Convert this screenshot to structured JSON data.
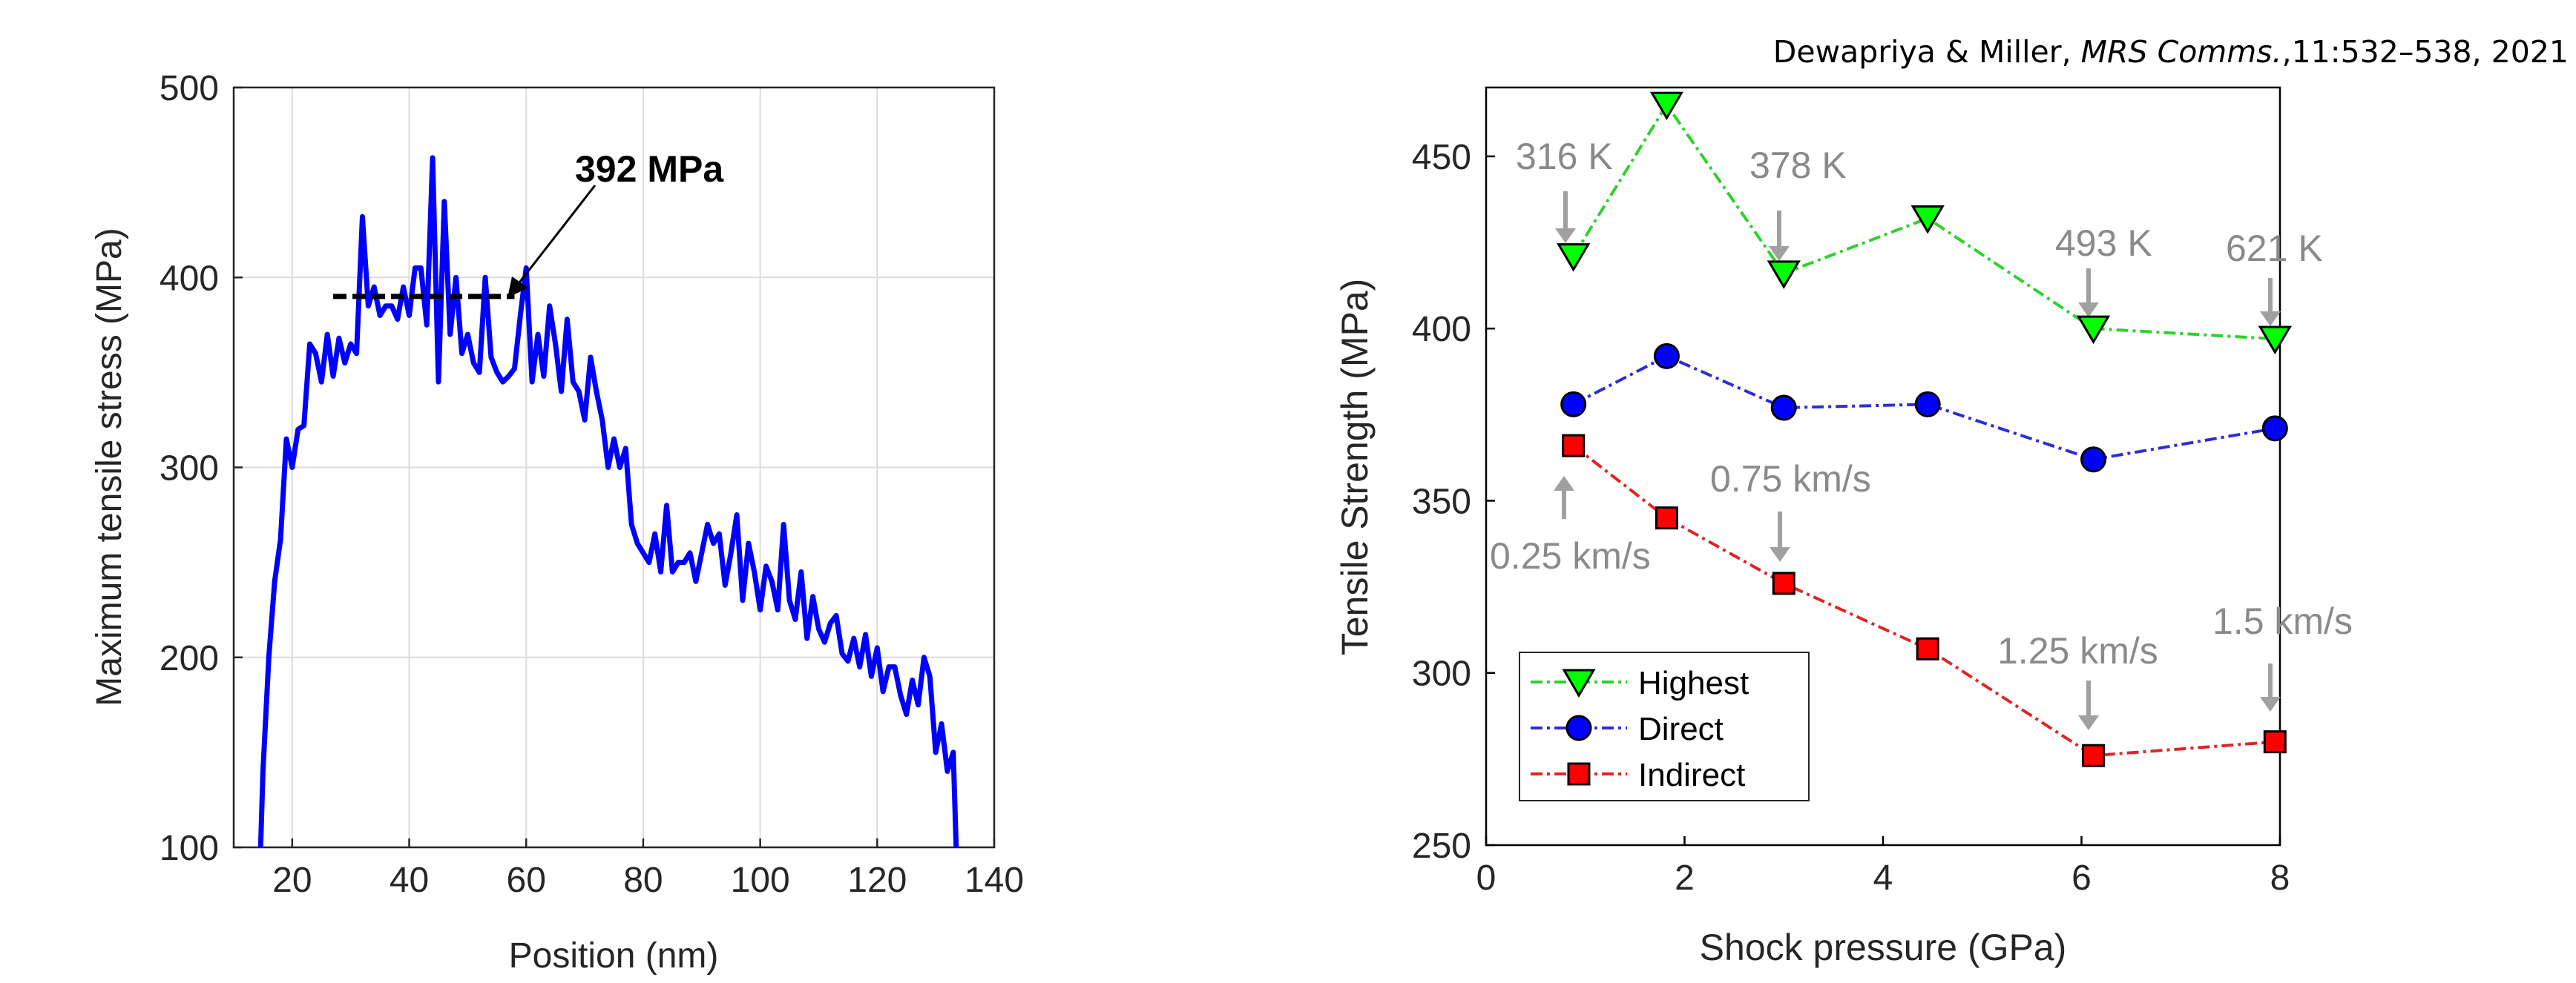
{
  "citation": {
    "authors": "Dewapriya & Miller,",
    "journal": "MRS Comms.",
    "details": ",11:532–538, 2021"
  },
  "chart_data": [
    {
      "type": "line",
      "xlabel": "Position (nm)",
      "ylabel": "Maximum tensile stress (MPa)",
      "xlim": [
        10,
        140
      ],
      "ylim": [
        100,
        500
      ],
      "xticks": [
        20,
        40,
        60,
        80,
        100,
        120,
        140
      ],
      "yticks": [
        100,
        200,
        300,
        400,
        500
      ],
      "grid": true,
      "series": [
        {
          "color": "#0000ff",
          "x": [
            14.6,
            15,
            16,
            17,
            18,
            19,
            20,
            21,
            22,
            23,
            24,
            25,
            26,
            27,
            28,
            29,
            30,
            31,
            32,
            33,
            34,
            35,
            36,
            37,
            38,
            39,
            40,
            41,
            42,
            43,
            44,
            45,
            46,
            47,
            48,
            49,
            50,
            51,
            52,
            53,
            54,
            55,
            56,
            57,
            58,
            59,
            60,
            61,
            62,
            63,
            64,
            65,
            66,
            67,
            68,
            69,
            70,
            71,
            72,
            73,
            74,
            75,
            76,
            77,
            78,
            79,
            80,
            81,
            82,
            83,
            84,
            85,
            86,
            87,
            88,
            89,
            90,
            91,
            92,
            93,
            94,
            95,
            96,
            97,
            98,
            99,
            100,
            101,
            102,
            103,
            104,
            105,
            106,
            107,
            108,
            109,
            110,
            111,
            112,
            113,
            114,
            115,
            116,
            117,
            118,
            119,
            120,
            121,
            122,
            123,
            124,
            125,
            126,
            127,
            128,
            129,
            130,
            131,
            132,
            133,
            133.5
          ],
          "y": [
            100,
            140,
            200,
            240,
            262,
            315,
            300,
            320,
            322,
            365,
            360,
            345,
            370,
            348,
            368,
            355,
            365,
            360,
            432,
            385,
            395,
            380,
            385,
            385,
            378,
            395,
            380,
            405,
            405,
            375,
            463,
            345,
            440,
            370,
            400,
            360,
            370,
            355,
            350,
            400,
            358,
            350,
            345,
            348,
            352,
            380,
            405,
            345,
            370,
            348,
            385,
            365,
            340,
            378,
            345,
            340,
            325,
            358,
            340,
            325,
            300,
            315,
            300,
            310,
            270,
            260,
            255,
            250,
            265,
            245,
            280,
            245,
            250,
            250,
            255,
            240,
            255,
            270,
            260,
            265,
            238,
            255,
            275,
            230,
            260,
            245,
            225,
            248,
            240,
            225,
            270,
            230,
            220,
            245,
            210,
            232,
            215,
            208,
            218,
            222,
            202,
            198,
            210,
            195,
            212,
            190,
            205,
            182,
            195,
            195,
            180,
            170,
            188,
            175,
            200,
            190,
            150,
            165,
            140,
            150,
            100
          ]
        }
      ],
      "reference_line": {
        "y": 390,
        "x_range": [
          27,
          58
        ],
        "style": "dashed",
        "color": "#000000"
      },
      "annotations": [
        {
          "text": "392 MPa",
          "bold": true
        }
      ]
    },
    {
      "type": "line",
      "xlabel": "Shock pressure (GPa)",
      "ylabel": "Tensile Strength (MPa)",
      "xlim": [
        0,
        8
      ],
      "ylim": [
        250,
        470
      ],
      "xticks": [
        0,
        2,
        4,
        6,
        8
      ],
      "yticks": [
        250,
        300,
        350,
        400,
        450
      ],
      "grid": false,
      "legend": "lower-left",
      "series": [
        {
          "name": "Highest",
          "color": "#2ed12e",
          "marker": "triangle-down",
          "marker_color": "#00ff00",
          "x": [
            0.88,
            1.82,
            3.0,
            4.45,
            6.12,
            7.95
          ],
          "y": [
            421,
            465,
            416,
            432,
            400,
            397
          ]
        },
        {
          "name": "Direct",
          "color": "#2d2dd6",
          "marker": "circle",
          "marker_color": "#0000ff",
          "x": [
            0.88,
            1.82,
            3.0,
            4.45,
            6.12,
            7.95
          ],
          "y": [
            378,
            392,
            377,
            378,
            362,
            371
          ]
        },
        {
          "name": "Indirect",
          "color": "#e02424",
          "marker": "square",
          "marker_color": "#ff0000",
          "x": [
            0.88,
            1.82,
            3.0,
            4.45,
            6.12,
            7.95
          ],
          "y": [
            366,
            345,
            326,
            307,
            276,
            280
          ]
        }
      ],
      "annotations": [
        {
          "text": "316 K"
        },
        {
          "text": "378 K"
        },
        {
          "text": "493 K"
        },
        {
          "text": "621 K"
        },
        {
          "text": "0.25 km/s"
        },
        {
          "text": "0.75 km/s"
        },
        {
          "text": "1.25 km/s"
        },
        {
          "text": "1.5 km/s"
        }
      ],
      "annotation_color": "#8a8a8a"
    }
  ]
}
